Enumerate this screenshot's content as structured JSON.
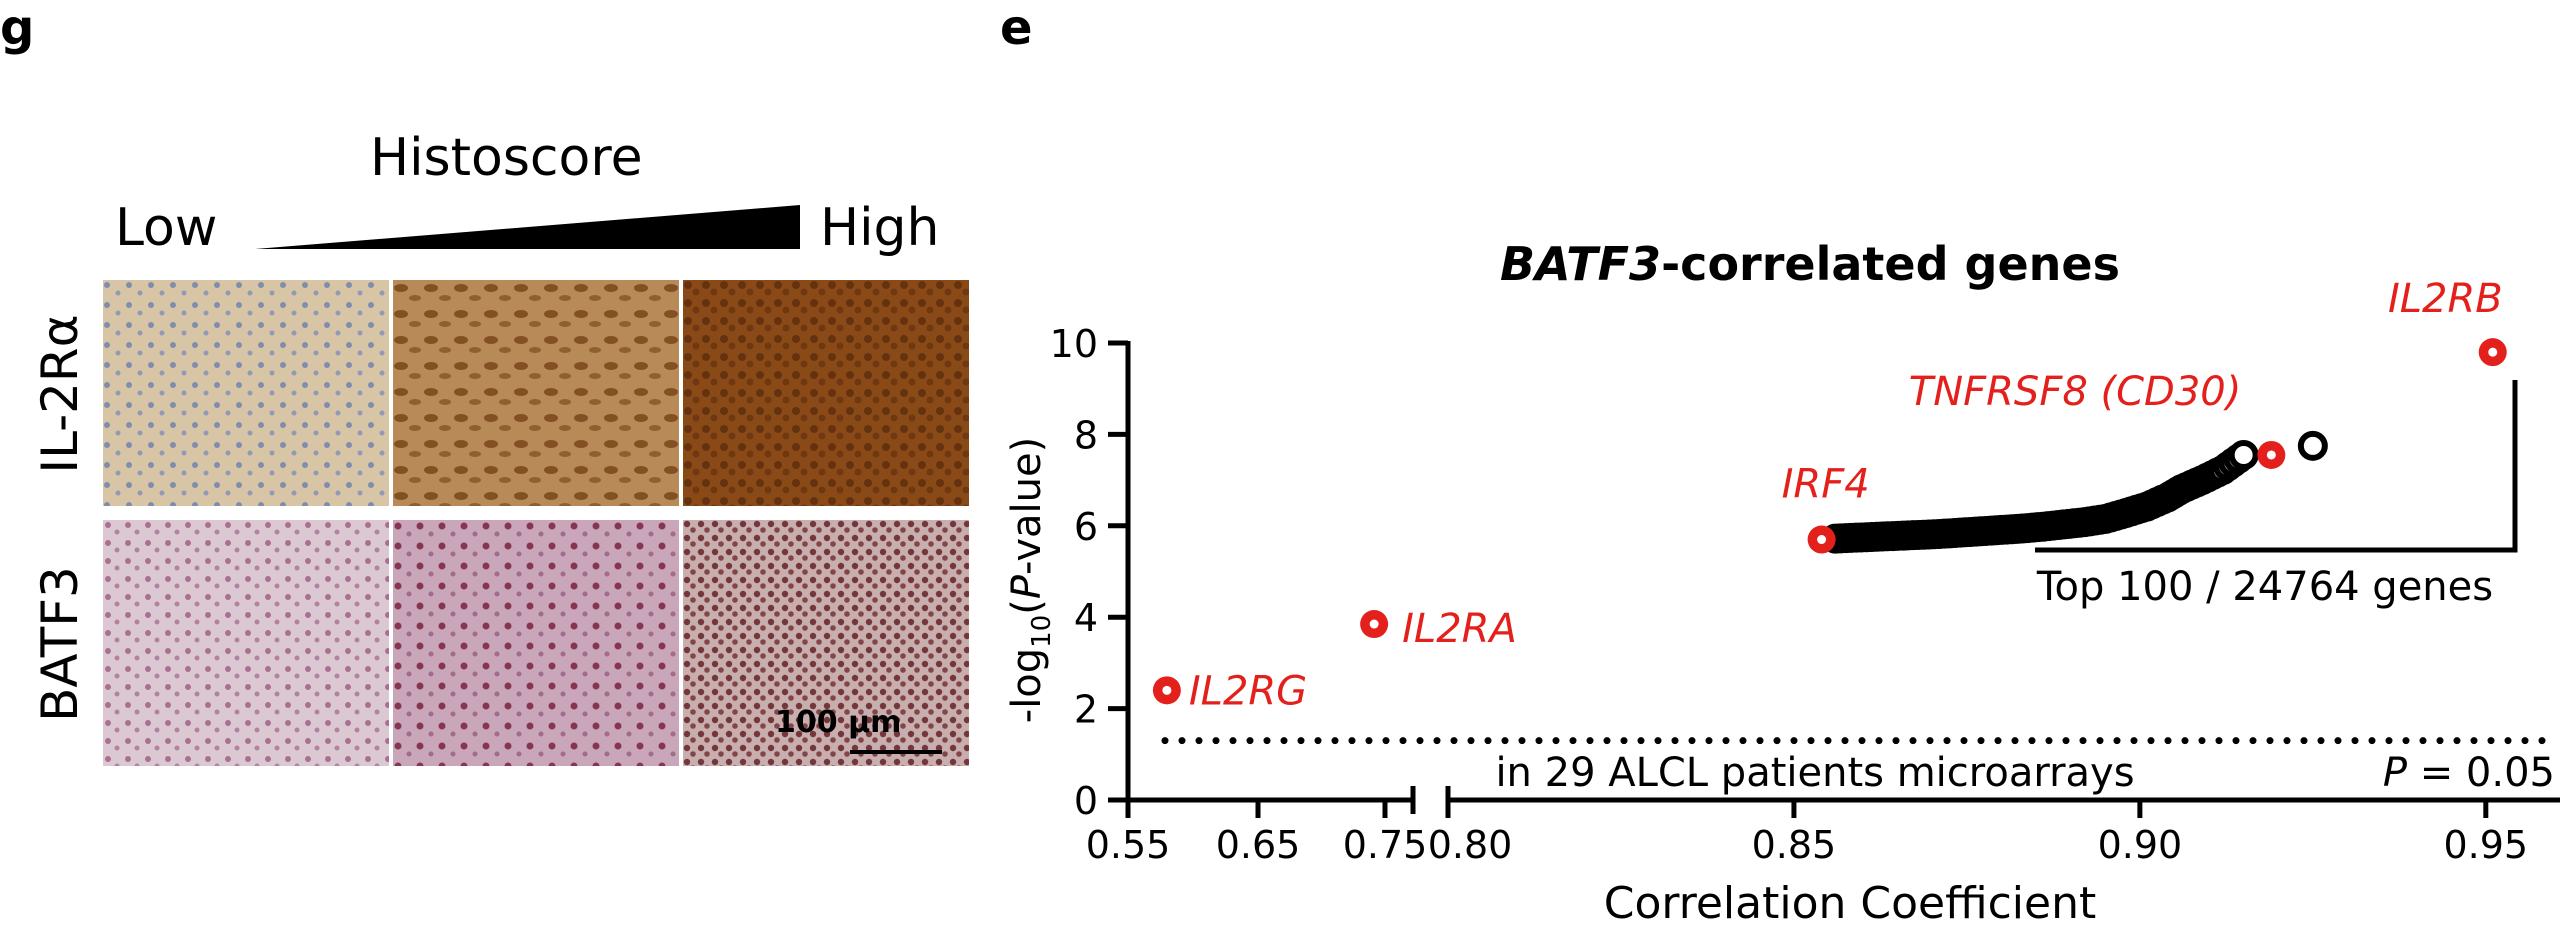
{
  "panel_g": {
    "letter": "g",
    "histoscore_label": "Histoscore",
    "low_label": "Low",
    "high_label": "High",
    "rows": [
      {
        "label": "IL-2Rα",
        "tiles": [
          "low",
          "mid",
          "high"
        ]
      },
      {
        "label": "BATF3",
        "tiles": [
          "low",
          "mid",
          "high"
        ]
      }
    ],
    "scale_bar": "100 µm",
    "colors": {
      "il2ra_low": "#d8c5a6",
      "il2ra_mid": "#a8763f",
      "il2ra_high": "#7a3f12",
      "batf3_low": "#d7c3cf",
      "batf3_mid": "#b98aa0",
      "batf3_high": "#8a5a63"
    }
  },
  "panel_e": {
    "letter": "e",
    "annotation_top": "Top 100 / 24764 genes",
    "annotation_bottom": "in 29 ALCL patients microarrays",
    "pvalue_prefix": "P",
    "pvalue_suffix": " = 0.05",
    "highlight_color": "#e3201b"
  },
  "chart_data": {
    "type": "scatter",
    "title_italic": "BATF3",
    "title_rest": "-correlated genes",
    "xlabel": "Correlation Coefficient",
    "ylabel": "-log10(P-value)",
    "ylabel_parts": {
      "pre": "-log",
      "sub": "10",
      "open": "(",
      "p": "P",
      "post": "-value)"
    },
    "x_axis": "broken",
    "x_segment1": {
      "range": [
        0.55,
        0.77
      ],
      "ticks": [
        "0.55",
        "0.65",
        "0.75"
      ]
    },
    "x_segment2": {
      "range": [
        0.8,
        0.96
      ],
      "ticks": [
        "0.80",
        "0.85",
        "0.90",
        "0.95"
      ]
    },
    "ylim": [
      0,
      10
    ],
    "y_ticks": [
      "0",
      "2",
      "4",
      "6",
      "8",
      "10"
    ],
    "threshold": {
      "y": 1.3,
      "style": "dotted"
    },
    "highlighted": [
      {
        "gene": "IL2RG",
        "x": 0.58,
        "y": 2.4
      },
      {
        "gene": "IL2RA",
        "x": 0.74,
        "y": 3.85
      },
      {
        "gene": "IRF4",
        "x": 0.854,
        "y": 5.7
      },
      {
        "gene": "TNFRSF8 (CD30)",
        "x": 0.919,
        "y": 7.55
      },
      {
        "gene": "IL2RB",
        "x": 0.951,
        "y": 9.8
      }
    ],
    "background_points": [
      [
        0.856,
        5.72
      ],
      [
        0.859,
        5.74
      ],
      [
        0.862,
        5.76
      ],
      [
        0.865,
        5.78
      ],
      [
        0.868,
        5.8
      ],
      [
        0.871,
        5.82
      ],
      [
        0.874,
        5.85
      ],
      [
        0.877,
        5.88
      ],
      [
        0.88,
        5.91
      ],
      [
        0.883,
        5.94
      ],
      [
        0.886,
        5.98
      ],
      [
        0.889,
        6.03
      ],
      [
        0.892,
        6.08
      ],
      [
        0.895,
        6.15
      ],
      [
        0.898,
        6.28
      ],
      [
        0.901,
        6.42
      ],
      [
        0.904,
        6.62
      ],
      [
        0.906,
        6.8
      ],
      [
        0.909,
        7.0
      ],
      [
        0.912,
        7.22
      ],
      [
        0.915,
        7.55
      ],
      [
        0.925,
        7.75
      ]
    ]
  }
}
